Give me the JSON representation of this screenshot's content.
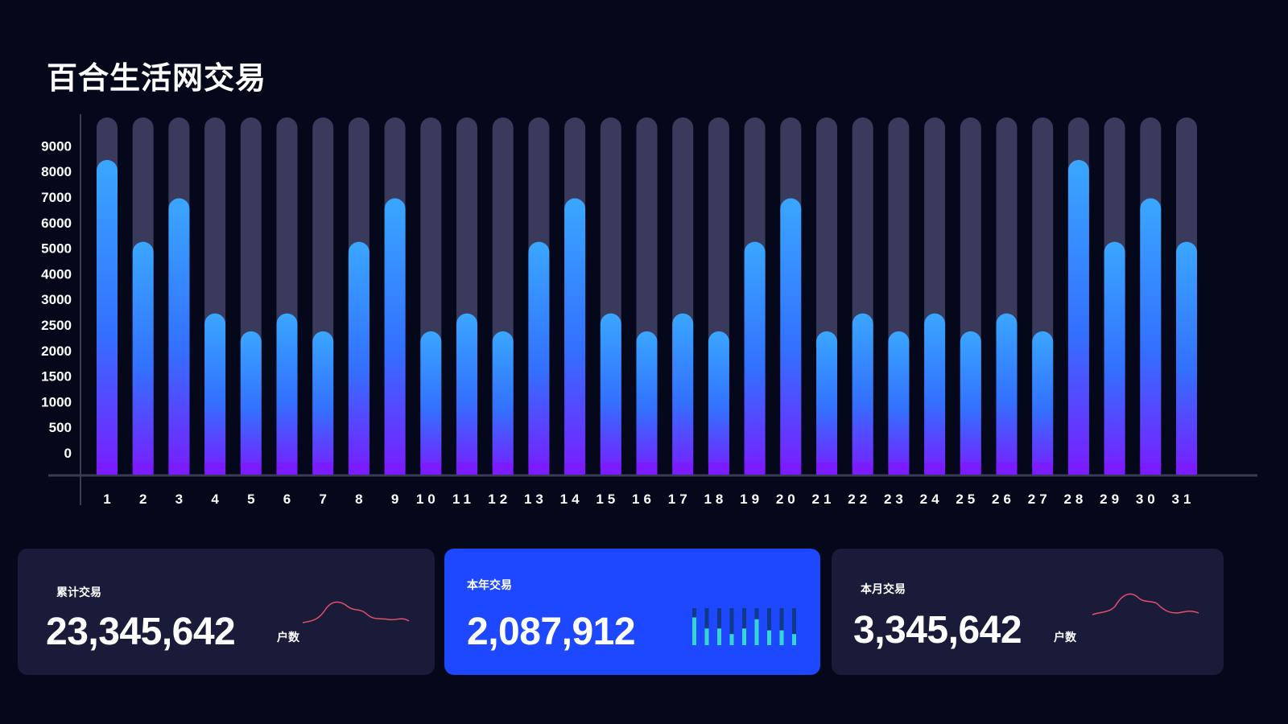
{
  "title": "百合生活网交易",
  "chart_data": {
    "type": "bar",
    "title": "百合生活网交易",
    "categories": [
      "1",
      "2",
      "3",
      "4",
      "5",
      "6",
      "7",
      "8",
      "9",
      "10",
      "11",
      "12",
      "13",
      "14",
      "15",
      "16",
      "17",
      "18",
      "19",
      "20",
      "21",
      "22",
      "23",
      "24",
      "25",
      "26",
      "27",
      "28",
      "29",
      "30",
      "31"
    ],
    "values": [
      8200,
      5000,
      6700,
      2600,
      2250,
      2600,
      2250,
      5000,
      6700,
      2250,
      2600,
      2250,
      5000,
      6700,
      2600,
      2250,
      2600,
      2250,
      5000,
      6700,
      2250,
      2600,
      2250,
      2600,
      2250,
      2600,
      2250,
      8200,
      5000,
      6700,
      5000
    ],
    "yticks": [
      "0",
      "500",
      "1000",
      "1500",
      "2000",
      "2500",
      "3000",
      "4000",
      "5000",
      "6000",
      "7000",
      "8000",
      "9000"
    ],
    "ylim": [
      0,
      9000
    ],
    "grid": false,
    "colors": {
      "bar_top": "#3aa0ff",
      "bar_bottom": "#7a1cff",
      "track": "#3a3b5c"
    }
  },
  "cards": [
    {
      "label": "累计交易",
      "value": "23,345,642",
      "unit": "户数"
    },
    {
      "label": "本年交易",
      "value": "2,087,912"
    },
    {
      "label": "本月交易",
      "value": "3,345,642",
      "unit": "户数"
    }
  ],
  "mini_bars": [
    0.75,
    0.45,
    0.45,
    0.3,
    0.45,
    0.7,
    0.4,
    0.4,
    0.3
  ],
  "colors": {
    "accent": "#1e48ff",
    "card": "#1a1b38",
    "sparkline": "#e2506a",
    "mini_bar": "#35d6d0"
  }
}
